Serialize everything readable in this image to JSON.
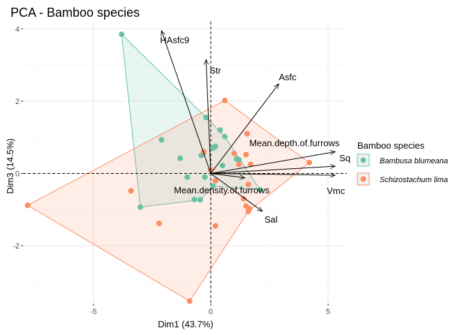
{
  "chart_data": {
    "type": "scatter",
    "title": "PCA - Bamboo species",
    "xlabel": "Dim1 (43.7%)",
    "ylabel": "Dim3 (14.5%)",
    "xlim": [
      -8.0,
      5.8
    ],
    "ylim": [
      -3.6,
      4.2
    ],
    "x_ticks": [
      -5,
      0,
      5
    ],
    "x_tick_labels": [
      "-5",
      "0",
      "5"
    ],
    "y_ticks": [
      -2,
      0,
      2,
      4
    ],
    "y_tick_labels": [
      "-2",
      "0",
      "2",
      "4"
    ],
    "grid": true,
    "reference_lines": {
      "x": 0,
      "y": 0,
      "style": "dashed"
    },
    "legend": {
      "title": "Bamboo species",
      "position": "right"
    },
    "series": [
      {
        "name": "Bambusa blumeana",
        "color": "#66C2A5",
        "points": [
          [
            -3.8,
            3.85
          ],
          [
            -2.1,
            0.93
          ],
          [
            -1.3,
            0.42
          ],
          [
            -1.0,
            -0.1
          ],
          [
            -0.7,
            -0.72
          ],
          [
            -0.45,
            -0.73
          ],
          [
            -0.4,
            0.5
          ],
          [
            -0.2,
            1.55
          ],
          [
            0.1,
            0.7
          ],
          [
            0.2,
            0.75
          ],
          [
            0.4,
            1.2
          ],
          [
            0.5,
            0.22
          ],
          [
            0.6,
            1.02
          ],
          [
            1.2,
            0.38
          ],
          [
            1.1,
            0.4
          ],
          [
            2.1,
            -0.45
          ],
          [
            -3.0,
            -0.93
          ],
          [
            -0.25,
            -0.1
          ],
          [
            0.1,
            -0.35
          ],
          [
            -0.3,
            0.58
          ]
        ],
        "hull": [
          [
            -3.8,
            3.85
          ],
          [
            -0.2,
            1.55
          ],
          [
            0.6,
            1.02
          ],
          [
            2.1,
            -0.45
          ],
          [
            0.1,
            -0.35
          ],
          [
            -0.45,
            -0.73
          ],
          [
            -3.0,
            -0.93
          ]
        ]
      },
      {
        "name": "Schizostachum lima",
        "color": "#FC8D62",
        "points": [
          [
            -7.8,
            -0.88
          ],
          [
            -3.4,
            -0.48
          ],
          [
            -2.2,
            -1.38
          ],
          [
            -0.9,
            -3.53
          ],
          [
            -0.3,
            0.6
          ],
          [
            0.0,
            0.1
          ],
          [
            0.2,
            -0.2
          ],
          [
            0.2,
            -1.45
          ],
          [
            0.6,
            2.02
          ],
          [
            1.0,
            0.55
          ],
          [
            1.2,
            0.25
          ],
          [
            1.5,
            0.52
          ],
          [
            1.6,
            -0.3
          ],
          [
            1.4,
            -0.7
          ],
          [
            1.5,
            -0.9
          ],
          [
            1.6,
            -1.05
          ],
          [
            1.65,
            -0.98
          ],
          [
            1.7,
            0.25
          ],
          [
            4.2,
            0.3
          ],
          [
            1.55,
            1.1
          ]
        ],
        "hull": [
          [
            -7.8,
            -0.88
          ],
          [
            0.6,
            2.02
          ],
          [
            4.2,
            0.3
          ],
          [
            1.6,
            -1.05
          ],
          [
            -0.9,
            -3.53
          ]
        ]
      }
    ],
    "variables": [
      {
        "name": "HAsfc9",
        "x": -2.1,
        "y": 3.95
      },
      {
        "name": "Str",
        "x": -0.2,
        "y": 3.15
      },
      {
        "name": "Asfc",
        "x": 2.9,
        "y": 2.48
      },
      {
        "name": "Mean.depth.of.furrows",
        "x": 5.3,
        "y": 0.6
      },
      {
        "name": "Sq",
        "x": 5.3,
        "y": 0.2
      },
      {
        "name": "Vmc",
        "x": 5.3,
        "y": -0.05
      },
      {
        "name": "Mean.density.of.furrows",
        "x": 1.45,
        "y": -0.12
      },
      {
        "name": "Sal",
        "x": 2.2,
        "y": -1.05
      }
    ]
  }
}
